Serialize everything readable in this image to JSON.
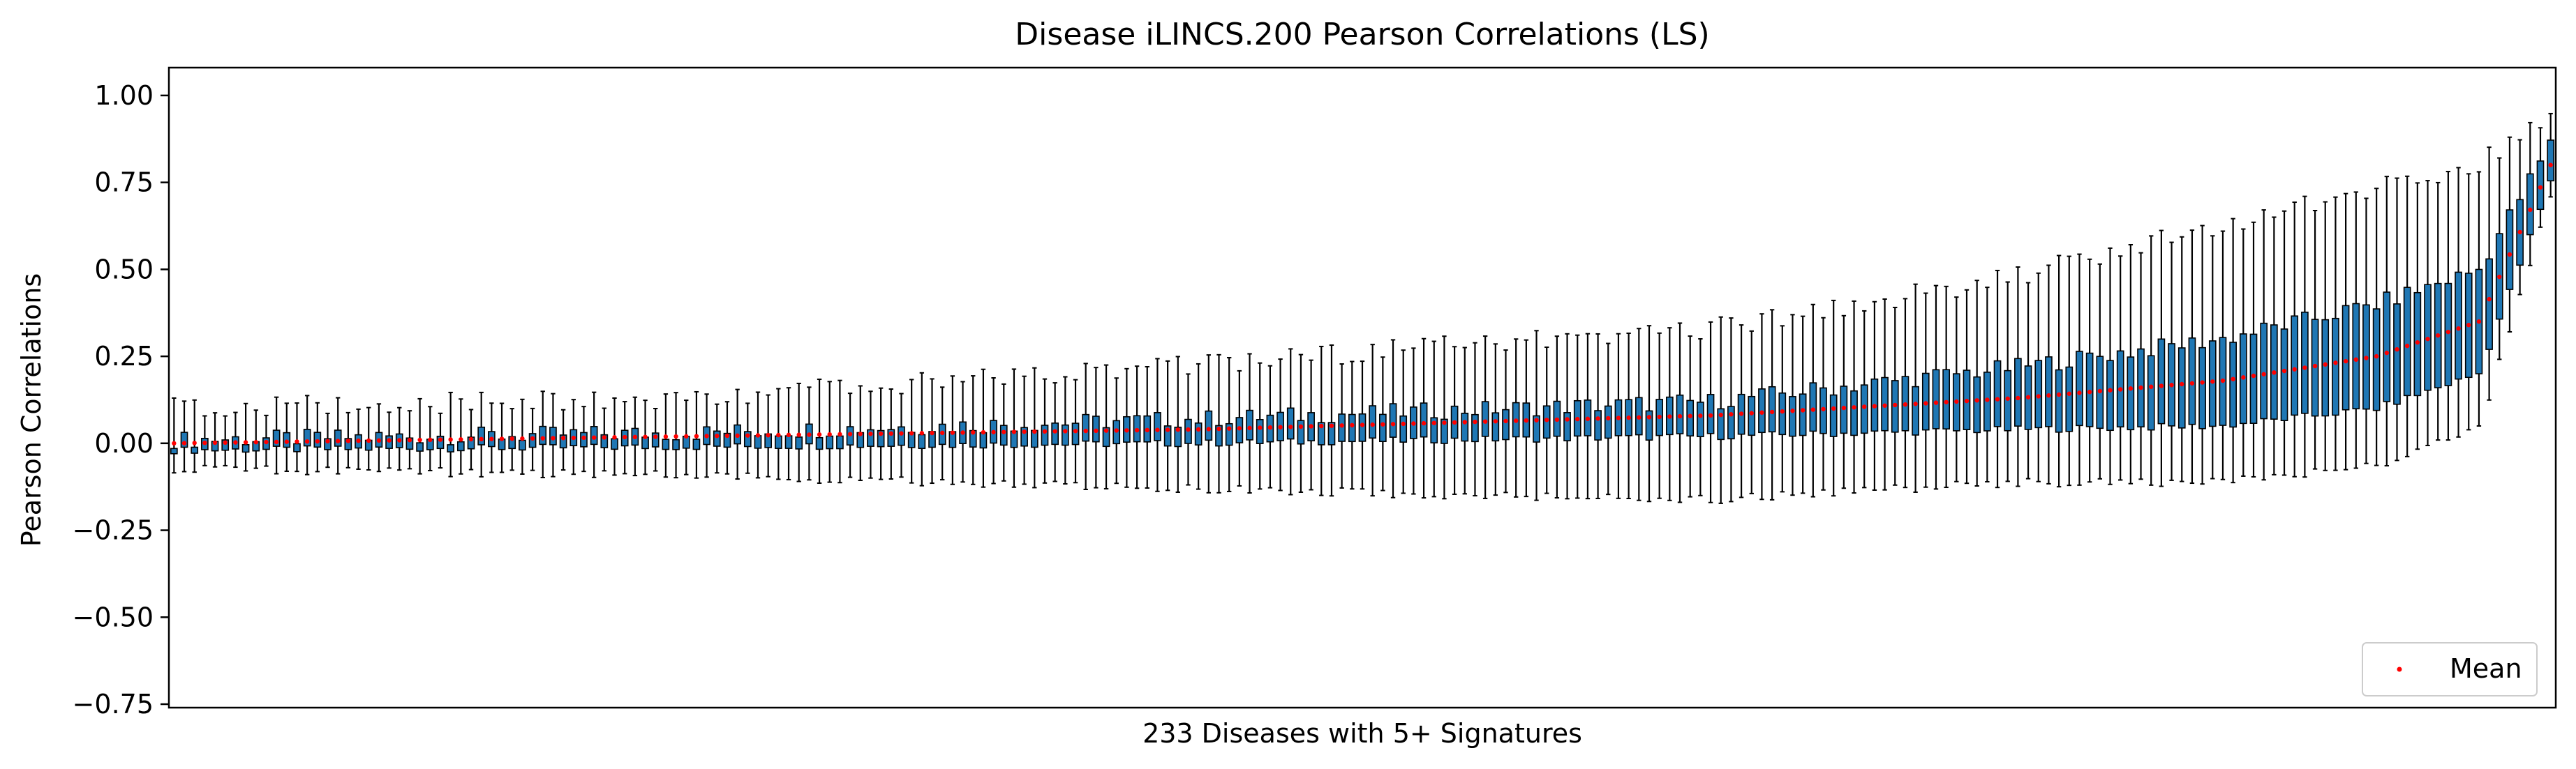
{
  "chart_data": {
    "type": "box",
    "title": "Disease iLINCS.200 Pearson Correlations (LS)",
    "xlabel": "233 Diseases with 5+ Signatures",
    "ylabel": "Pearson Correlations",
    "ylim": [
      -0.76,
      1.08
    ],
    "yticks": [
      -0.75,
      -0.5,
      -0.25,
      0.0,
      0.25,
      0.5,
      0.75,
      1.0
    ],
    "ytick_labels": [
      "−0.75",
      "−0.50",
      "−0.25",
      "0.00",
      "0.25",
      "0.50",
      "0.75",
      "1.00"
    ],
    "n_boxes": 233,
    "grid": false,
    "legend": {
      "position": "lower-right",
      "entries": [
        {
          "label": "Mean",
          "color": "#ff0000",
          "marker": "dot"
        }
      ]
    },
    "box_color": "#1f77b4",
    "mean_color": "#ff0000",
    "mean_trend": {
      "x_index": [
        0,
        50,
        100,
        150,
        180,
        200,
        215,
        225,
        232
      ],
      "mean": [
        0.0,
        0.02,
        0.04,
        0.08,
        0.13,
        0.18,
        0.25,
        0.35,
        0.8
      ]
    },
    "sampled_boxes": [
      {
        "index": 0,
        "mean": 0.0,
        "q1": -0.02,
        "q3": 0.01,
        "whisker_low": -0.06,
        "whisker_high": 0.07
      },
      {
        "index": 50,
        "mean": 0.02,
        "q1": -0.01,
        "q3": 0.03,
        "whisker_low": -0.08,
        "whisker_high": 0.1
      },
      {
        "index": 100,
        "mean": 0.04,
        "q1": 0.0,
        "q3": 0.07,
        "whisker_low": -0.12,
        "whisker_high": 0.2
      },
      {
        "index": 150,
        "mean": 0.08,
        "q1": 0.02,
        "q3": 0.12,
        "whisker_low": -0.15,
        "whisker_high": 0.3
      },
      {
        "index": 180,
        "mean": 0.13,
        "q1": 0.04,
        "q3": 0.22,
        "whisker_low": -0.1,
        "whisker_high": 0.45
      },
      {
        "index": 200,
        "mean": 0.18,
        "q1": 0.05,
        "q3": 0.3,
        "whisker_low": -0.1,
        "whisker_high": 0.6
      },
      {
        "index": 215,
        "mean": 0.25,
        "q1": 0.1,
        "q3": 0.4,
        "whisker_low": -0.05,
        "whisker_high": 0.7
      },
      {
        "index": 225,
        "mean": 0.35,
        "q1": 0.2,
        "q3": 0.5,
        "whisker_low": 0.05,
        "whisker_high": 0.78
      },
      {
        "index": 232,
        "mean": 0.8,
        "q1": 0.75,
        "q3": 0.86,
        "whisker_low": 0.72,
        "whisker_high": 0.92
      }
    ]
  }
}
